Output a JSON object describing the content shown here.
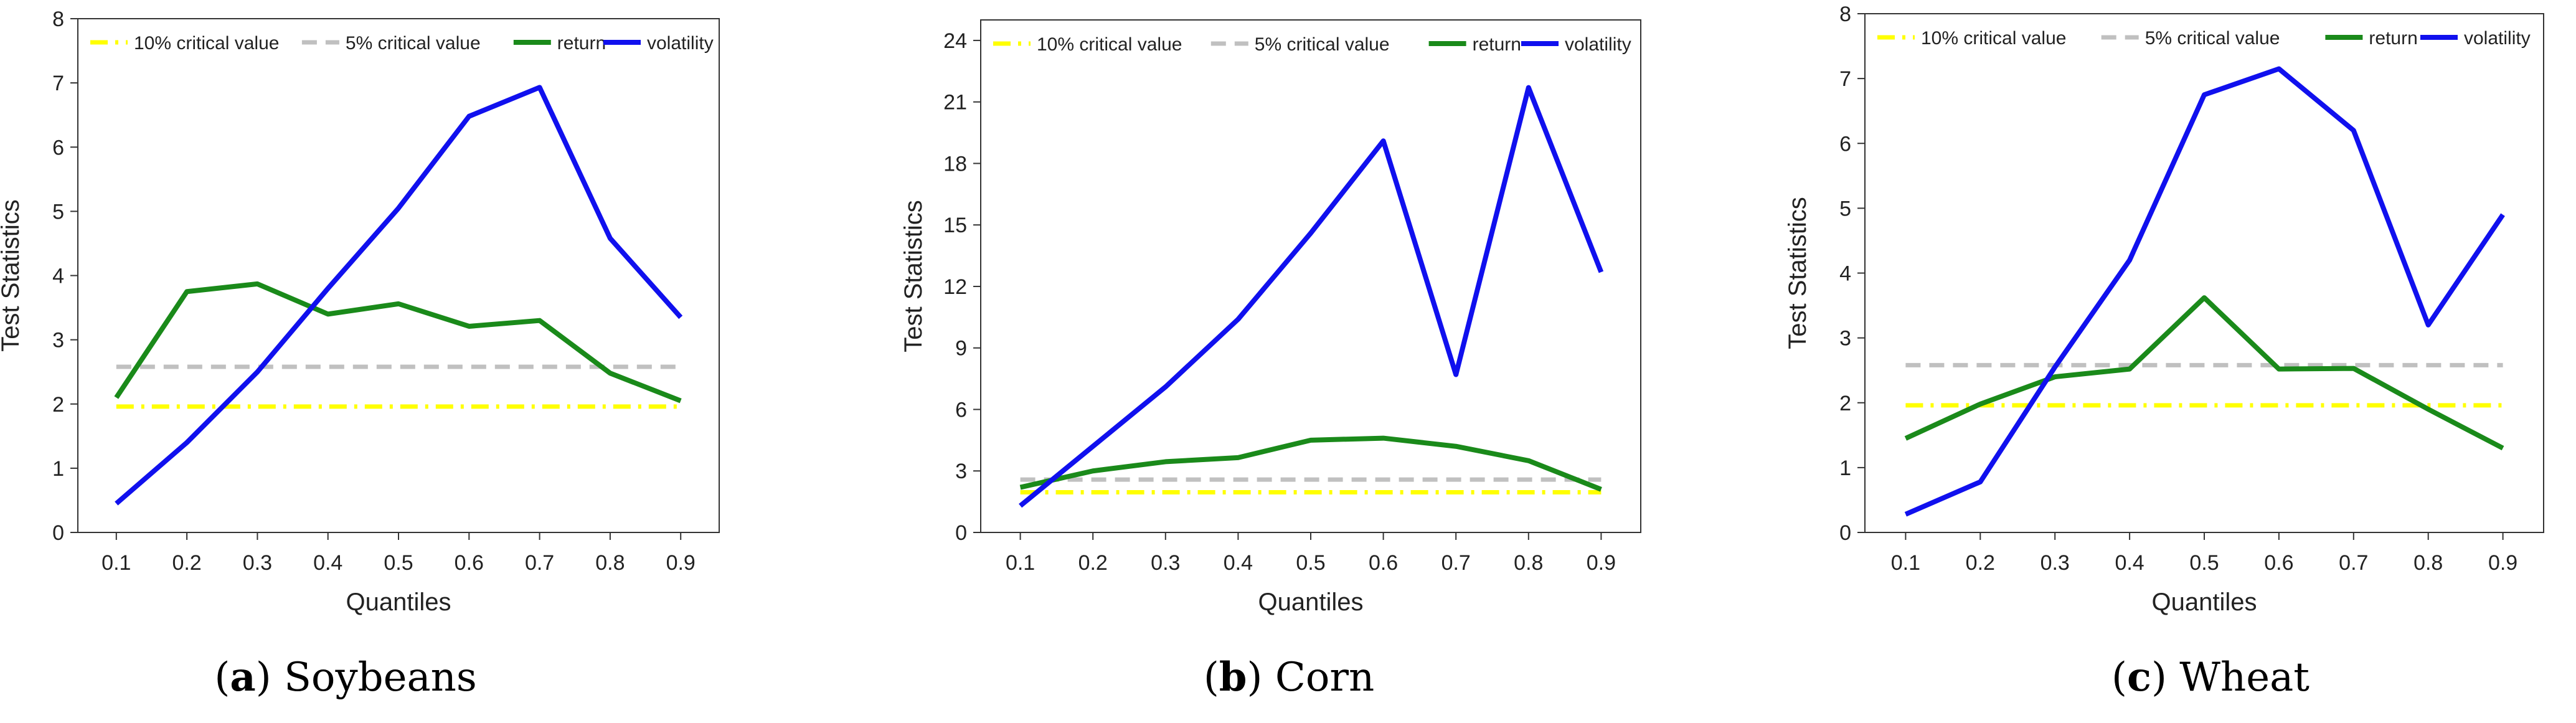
{
  "figure": {
    "colors": {
      "crit10": "#ffff00",
      "crit5": "#c0c0c0",
      "return": "#1a8a1a",
      "volatility": "#1010ee"
    }
  },
  "chart_data": [
    {
      "type": "line",
      "panel": "a",
      "caption_letter": "a",
      "caption_text": " Soybeans",
      "xlabel": "Quantiles",
      "ylabel": "Test Statistics",
      "x": [
        0.1,
        0.2,
        0.3,
        0.4,
        0.5,
        0.6,
        0.7,
        0.8,
        0.9
      ],
      "x_ticks": [
        "0.1",
        "0.2",
        "0.3",
        "0.4",
        "0.5",
        "0.6",
        "0.7",
        "0.8",
        "0.9"
      ],
      "ylim": [
        0,
        8
      ],
      "y_ticks": [
        0,
        1,
        2,
        3,
        4,
        5,
        6,
        7,
        8
      ],
      "legend": [
        "10% critical value",
        "5% critical value",
        "return",
        "volatility"
      ],
      "legend_position": "top",
      "series": [
        {
          "name": "10% critical value",
          "values": [
            1.96,
            1.96,
            1.96,
            1.96,
            1.96,
            1.96,
            1.96,
            1.96,
            1.96
          ]
        },
        {
          "name": "5% critical value",
          "values": [
            2.58,
            2.58,
            2.58,
            2.58,
            2.58,
            2.58,
            2.58,
            2.58,
            2.58
          ]
        },
        {
          "name": "return",
          "values": [
            2.1,
            3.75,
            3.87,
            3.4,
            3.56,
            3.21,
            3.3,
            2.48,
            2.05
          ]
        },
        {
          "name": "volatility",
          "values": [
            0.45,
            1.4,
            2.5,
            3.8,
            5.05,
            6.48,
            6.93,
            4.58,
            3.35
          ]
        }
      ]
    },
    {
      "type": "line",
      "panel": "b",
      "caption_letter": "b",
      "caption_text": " Corn",
      "xlabel": "Quantiles",
      "ylabel": "Test Statistics",
      "x": [
        0.1,
        0.2,
        0.3,
        0.4,
        0.5,
        0.6,
        0.7,
        0.8,
        0.9
      ],
      "x_ticks": [
        "0.1",
        "0.2",
        "0.3",
        "0.4",
        "0.5",
        "0.6",
        "0.7",
        "0.8",
        "0.9"
      ],
      "ylim": [
        0,
        25
      ],
      "y_ticks": [
        0,
        3,
        6,
        9,
        12,
        15,
        18,
        21,
        24
      ],
      "legend": [
        "10% critical value",
        "5% critical value",
        "return",
        "volatility"
      ],
      "legend_position": "top",
      "series": [
        {
          "name": "10% critical value",
          "values": [
            1.96,
            1.96,
            1.96,
            1.96,
            1.96,
            1.96,
            1.96,
            1.96,
            1.96
          ]
        },
        {
          "name": "5% critical value",
          "values": [
            2.58,
            2.58,
            2.58,
            2.58,
            2.58,
            2.58,
            2.58,
            2.58,
            2.58
          ]
        },
        {
          "name": "return",
          "values": [
            2.2,
            3.0,
            3.45,
            3.65,
            4.5,
            4.6,
            4.2,
            3.5,
            2.1
          ]
        },
        {
          "name": "volatility",
          "values": [
            1.3,
            4.2,
            7.1,
            10.4,
            14.6,
            19.1,
            7.7,
            21.7,
            12.7
          ]
        }
      ]
    },
    {
      "type": "line",
      "panel": "c",
      "caption_letter": "c",
      "caption_text": " Wheat",
      "xlabel": "Quantiles",
      "ylabel": "Test Statistics",
      "x": [
        0.1,
        0.2,
        0.3,
        0.4,
        0.5,
        0.6,
        0.7,
        0.8,
        0.9
      ],
      "x_ticks": [
        "0.1",
        "0.2",
        "0.3",
        "0.4",
        "0.5",
        "0.6",
        "0.7",
        "0.8",
        "0.9"
      ],
      "ylim": [
        0,
        8
      ],
      "y_ticks": [
        0,
        1,
        2,
        3,
        4,
        5,
        6,
        7,
        8
      ],
      "legend": [
        "10% critical value",
        "5% critical value",
        "return",
        "volatility"
      ],
      "legend_position": "top",
      "series": [
        {
          "name": "10% critical value",
          "values": [
            1.96,
            1.96,
            1.96,
            1.96,
            1.96,
            1.96,
            1.96,
            1.96,
            1.96
          ]
        },
        {
          "name": "5% critical value",
          "values": [
            2.58,
            2.58,
            2.58,
            2.58,
            2.58,
            2.58,
            2.58,
            2.58,
            2.58
          ]
        },
        {
          "name": "return",
          "values": [
            1.45,
            1.98,
            2.4,
            2.52,
            3.62,
            2.52,
            2.53,
            1.9,
            1.3
          ]
        },
        {
          "name": "volatility",
          "values": [
            0.28,
            0.78,
            2.55,
            4.2,
            6.75,
            7.15,
            6.2,
            3.2,
            4.9
          ]
        }
      ]
    }
  ]
}
